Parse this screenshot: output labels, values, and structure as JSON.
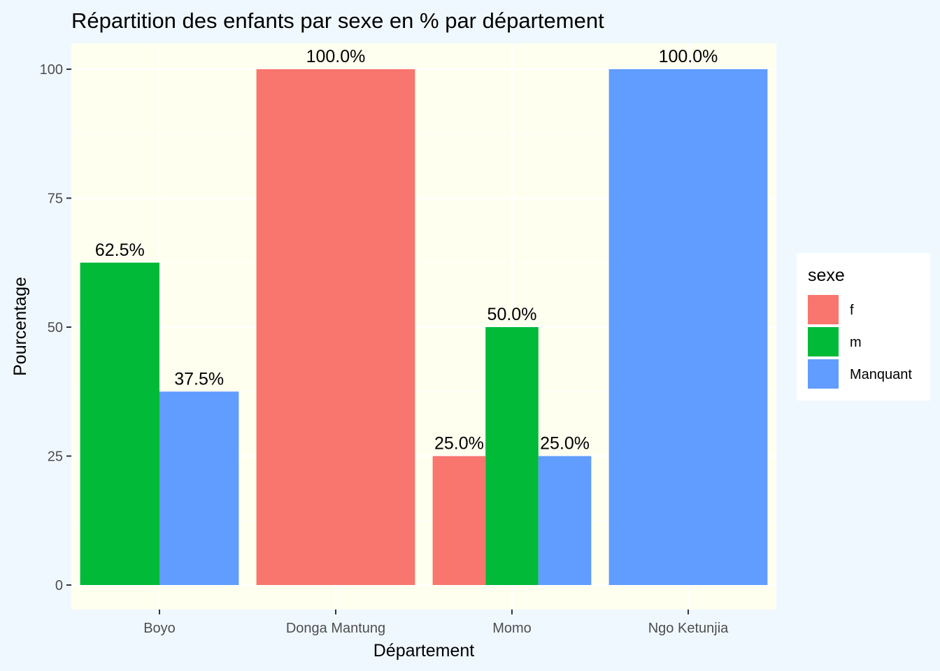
{
  "chart_data": {
    "type": "bar",
    "title": "Répartition des enfants par sexe en % par département",
    "xlabel": "Département",
    "ylabel": "Pourcentage",
    "ylim": [
      0,
      105
    ],
    "yticks": [
      0,
      25,
      50,
      75,
      100
    ],
    "categories": [
      "Boyo",
      "Donga Mantung",
      "Momo",
      "Ngo Ketunjia"
    ],
    "series": [
      {
        "name": "f",
        "color": "#F8766D",
        "values": [
          null,
          100.0,
          25.0,
          null
        ]
      },
      {
        "name": "m",
        "color": "#00BA38",
        "values": [
          62.5,
          null,
          50.0,
          null
        ]
      },
      {
        "name": "Manquant",
        "color": "#619CFF",
        "values": [
          37.5,
          null,
          25.0,
          100.0
        ]
      }
    ],
    "data_labels": [
      [
        "",
        "100.0%",
        "25.0%",
        ""
      ],
      [
        "62.5%",
        "",
        "50.0%",
        ""
      ],
      [
        "37.5%",
        "",
        "25.0%",
        "100.0%"
      ]
    ],
    "legend": {
      "title": "sexe",
      "position": "right"
    },
    "panel_background": "#fffff0",
    "grid": true
  }
}
